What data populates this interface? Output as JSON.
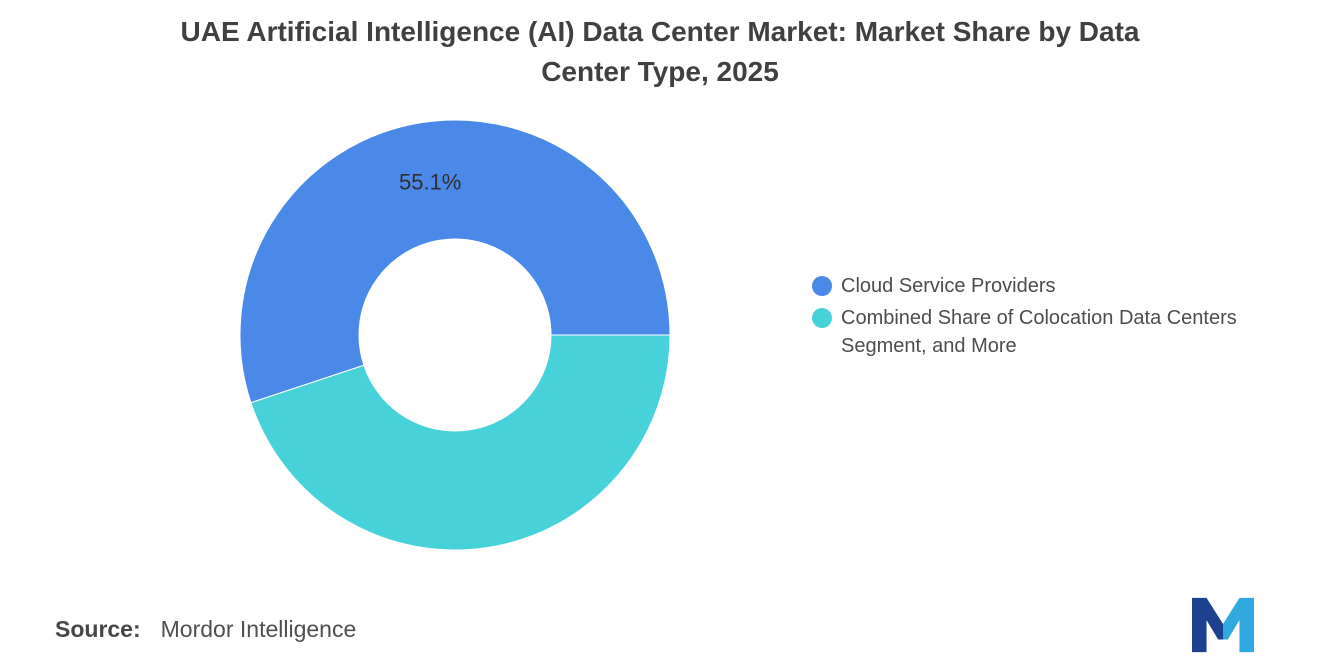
{
  "title": {
    "lines": [
      "UAE Artificial Intelligence (AI) Data Center Market: Market Share by Data",
      "Center Type, 2025"
    ],
    "full": "UAE Artificial Intelligence (AI) Data Center Market: Market Share by Data Center Type, 2025"
  },
  "chart_data": {
    "type": "pie",
    "donut": true,
    "title": "UAE Artificial Intelligence (AI) Data Center Market: Market Share by Data Center Type, 2025",
    "unit": "%",
    "start_angle": 90,
    "direction": "counterclockwise",
    "legend_position": "right",
    "slices": [
      {
        "label": "Cloud Service Providers",
        "value": 55.1,
        "data_label": "55.1%",
        "color": "#4A89E8"
      },
      {
        "label": "Combined Share of Colocation Data Centers Segment, and More",
        "value": 44.9,
        "data_label": "",
        "color": "#47D2DA"
      }
    ]
  },
  "legend": {
    "items": [
      {
        "label": "Cloud Service Providers",
        "color": "#4A89E8"
      },
      {
        "label": "Combined Share of Colocation Data Centers Segment, and More",
        "color": "#47D2DA"
      }
    ]
  },
  "source": {
    "label": "Source:",
    "value": "Mordor Intelligence"
  },
  "branding": {
    "logo": "mordor-intelligence-logo",
    "colors": {
      "dark": "#1D418F",
      "light": "#2FA9DF"
    }
  }
}
